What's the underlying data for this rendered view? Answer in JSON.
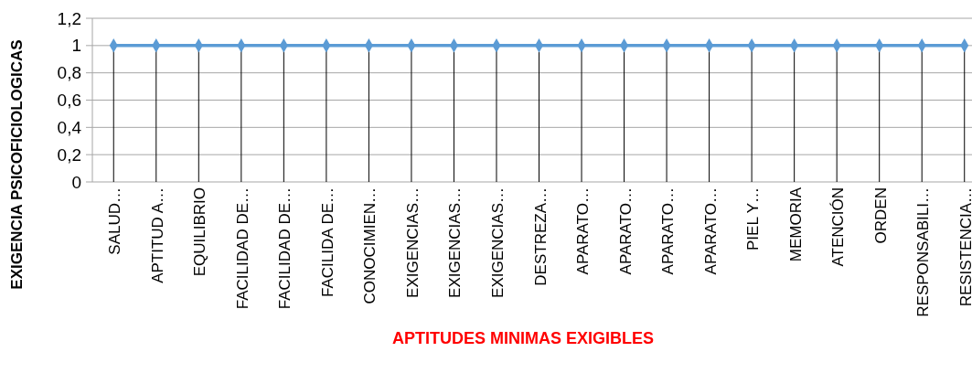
{
  "chart_data": {
    "type": "line",
    "xlabel": "APTITUDES MINIMAS  EXIGIBLES",
    "ylabel": "EXIGENCIA  PSICOFICIOLOGICAS",
    "categories": [
      "SALUD…",
      "APTITUD A…",
      "EQUILIBRIO",
      "FACILIDAD DE…",
      "FACILIDAD DE…",
      "FACILIDA DE…",
      "CONOCIMIEN…",
      "EXIGENCIAS…",
      "EXIGENCIAS…",
      "EXIGENCIAS…",
      "DESTREZA…",
      "APARATO…",
      "APARATO…",
      "APARATO…",
      "APARATO…",
      "PIEL Y…",
      "MEMORIA",
      "ATENCIÓN",
      "ORDEN",
      "RESPONSABILI…",
      "RESISTENCIA…"
    ],
    "series": [
      {
        "color": "#5b9bd5",
        "values": [
          1,
          1,
          1,
          1,
          1,
          1,
          1,
          1,
          1,
          1,
          1,
          1,
          1,
          1,
          1,
          1,
          1,
          1,
          1,
          1,
          1
        ]
      }
    ],
    "ylim": [
      0,
      1.2
    ],
    "yticks": [
      0,
      {
        "value": 0.2,
        "label": "0,2"
      },
      {
        "value": 0.4,
        "label": "0,4"
      },
      {
        "value": 0.6,
        "label": "0,6"
      },
      {
        "value": 0.8,
        "label": "0,8"
      },
      1,
      {
        "value": 1.2,
        "label": "1,2"
      }
    ],
    "grid": true,
    "marker": "diamond"
  }
}
